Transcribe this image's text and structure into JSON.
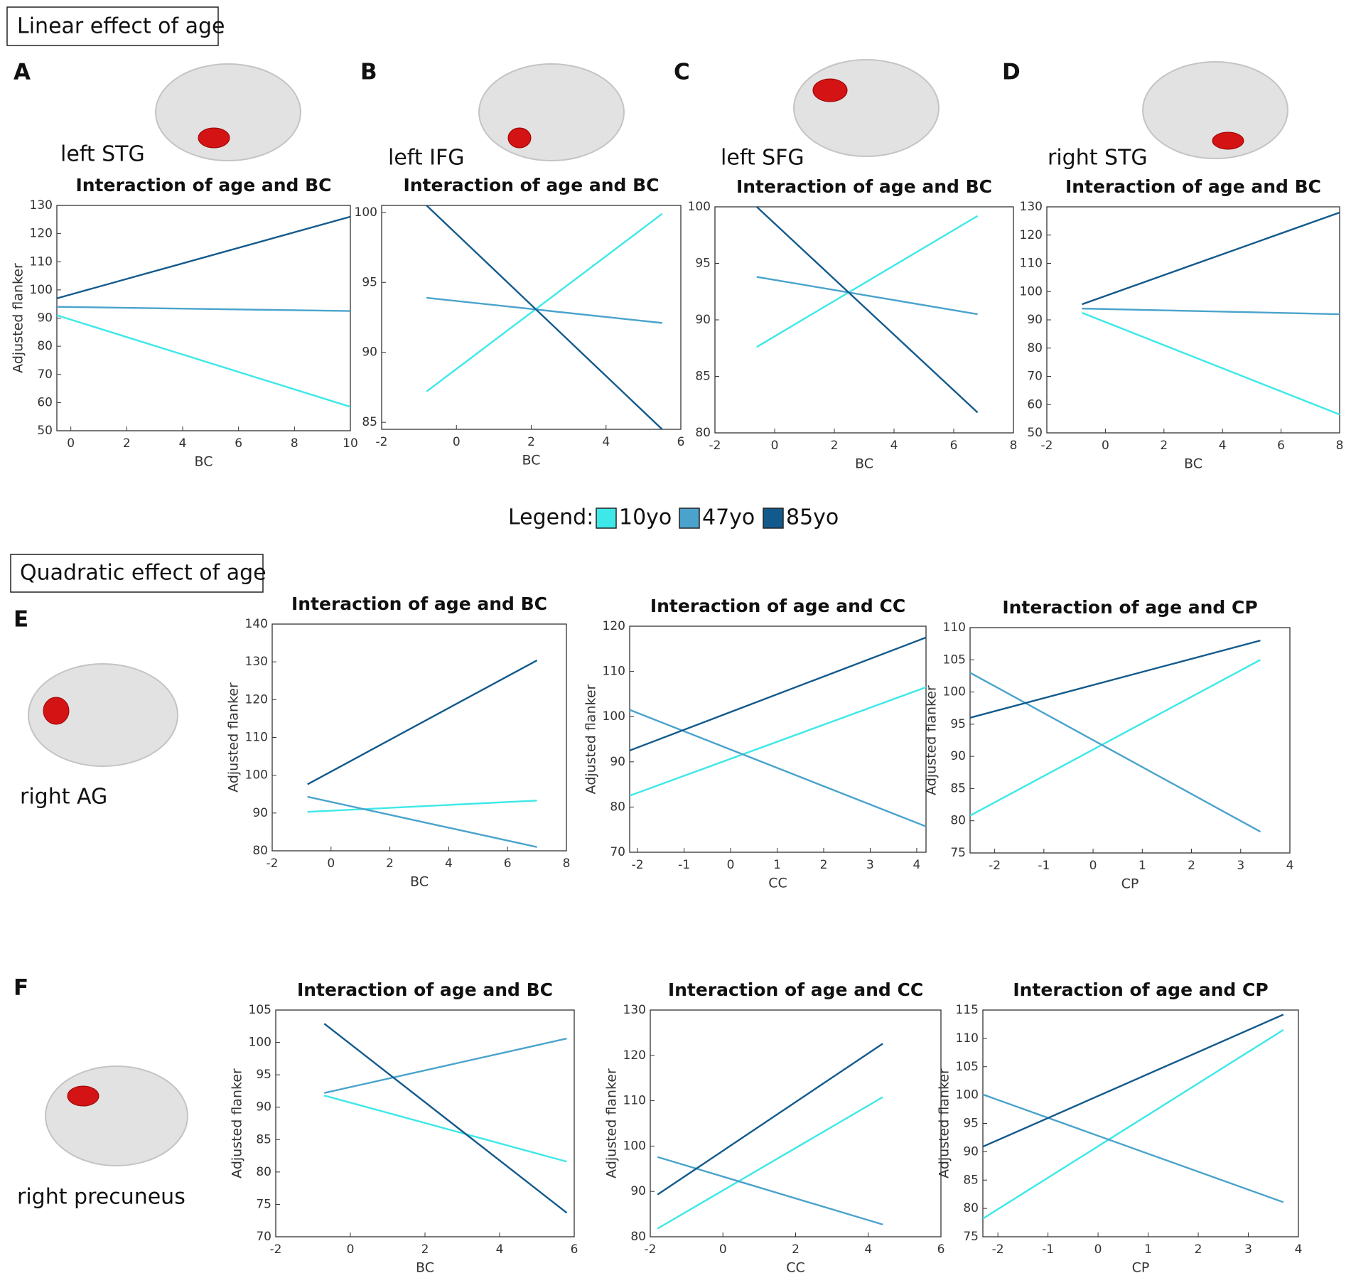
{
  "sections": [
    "Linear effect of age",
    "Quadratic effect of age"
  ],
  "panels": [
    {
      "letter": "A",
      "region": "left STG"
    },
    {
      "letter": "B",
      "region": "left IFG"
    },
    {
      "letter": "C",
      "region": "left SFG"
    },
    {
      "letter": "D",
      "region": "right STG"
    },
    {
      "letter": "E",
      "region": "right AG"
    },
    {
      "letter": "F",
      "region": "right precuneus"
    }
  ],
  "legend": {
    "title": "Legend:",
    "items": [
      {
        "name": "10yo",
        "color": "#3ee8e8"
      },
      {
        "name": "47yo",
        "color": "#4aa3cc"
      },
      {
        "name": "85yo",
        "color": "#135a8c"
      }
    ]
  },
  "chart_data": [
    {
      "type": "line",
      "title": "Interaction of age and BC",
      "xlabel": "BC",
      "ylabel": "Adjusted flanker",
      "xlim": [
        -0.5,
        10
      ],
      "xticks": [
        0,
        2,
        4,
        6,
        8,
        10
      ],
      "ylim": [
        50,
        130
      ],
      "yticks": [
        50,
        60,
        70,
        80,
        90,
        100,
        110,
        120,
        130
      ],
      "series": [
        {
          "color": "#3ee8e8",
          "x": [
            -0.5,
            10
          ],
          "values": [
            91,
            58.5
          ]
        },
        {
          "color": "#4aa3cc",
          "x": [
            -0.5,
            10
          ],
          "values": [
            94,
            92.5
          ]
        },
        {
          "color": "#135a8c",
          "x": [
            -0.5,
            10
          ],
          "values": [
            97,
            126
          ]
        }
      ]
    },
    {
      "type": "line",
      "title": "Interaction of age and BC",
      "xlabel": "BC",
      "xlim": [
        -2,
        6
      ],
      "xticks": [
        -2,
        0,
        2,
        4,
        6
      ],
      "ylim": [
        84.5,
        100.5
      ],
      "yticks": [
        85,
        90,
        95,
        100
      ],
      "series": [
        {
          "color": "#3ee8e8",
          "x": [
            -0.8,
            5.5
          ],
          "values": [
            87.2,
            99.9
          ]
        },
        {
          "color": "#4aa3cc",
          "x": [
            -0.8,
            5.5
          ],
          "values": [
            93.9,
            92.1
          ]
        },
        {
          "color": "#135a8c",
          "x": [
            -0.8,
            5.5
          ],
          "values": [
            100.5,
            84.5
          ]
        }
      ]
    },
    {
      "type": "line",
      "title": "Interaction of age and BC",
      "xlabel": "BC",
      "xlim": [
        -2,
        8
      ],
      "xticks": [
        -2,
        0,
        2,
        4,
        6,
        8
      ],
      "ylim": [
        80,
        100
      ],
      "yticks": [
        80,
        85,
        90,
        95,
        100
      ],
      "series": [
        {
          "color": "#3ee8e8",
          "x": [
            -0.6,
            6.8
          ],
          "values": [
            87.6,
            99.2
          ]
        },
        {
          "color": "#4aa3cc",
          "x": [
            -0.6,
            6.8
          ],
          "values": [
            93.8,
            90.5
          ]
        },
        {
          "color": "#135a8c",
          "x": [
            -0.6,
            6.8
          ],
          "values": [
            100,
            81.8
          ]
        }
      ]
    },
    {
      "type": "line",
      "title": "Interaction of age and BC",
      "xlabel": "BC",
      "xlim": [
        -2,
        8
      ],
      "xticks": [
        -2,
        0,
        2,
        4,
        6,
        8
      ],
      "ylim": [
        50,
        130
      ],
      "yticks": [
        50,
        60,
        70,
        80,
        90,
        100,
        110,
        120,
        130
      ],
      "series": [
        {
          "color": "#3ee8e8",
          "x": [
            -0.8,
            8
          ],
          "values": [
            92.5,
            56.5
          ]
        },
        {
          "color": "#4aa3cc",
          "x": [
            -0.8,
            8
          ],
          "values": [
            94,
            92
          ]
        },
        {
          "color": "#135a8c",
          "x": [
            -0.8,
            8
          ],
          "values": [
            95.5,
            128
          ]
        }
      ]
    },
    {
      "type": "line",
      "title": "Interaction of age and BC",
      "xlabel": "BC",
      "ylabel": "Adjusted flanker",
      "xlim": [
        -2,
        8
      ],
      "xticks": [
        -2,
        0,
        2,
        4,
        6,
        8
      ],
      "ylim": [
        80,
        140
      ],
      "yticks": [
        80,
        90,
        100,
        110,
        120,
        130,
        140
      ],
      "series": [
        {
          "color": "#3ee8e8",
          "x": [
            -0.8,
            7
          ],
          "values": [
            90.3,
            93.3
          ]
        },
        {
          "color": "#4aa3cc",
          "x": [
            -0.8,
            7
          ],
          "values": [
            94.3,
            81
          ]
        },
        {
          "color": "#135a8c",
          "x": [
            -0.8,
            7
          ],
          "values": [
            97.6,
            130.4
          ]
        }
      ]
    },
    {
      "type": "line",
      "title": "Interaction of age and CC",
      "xlabel": "CC",
      "ylabel": "Adjusted flanker",
      "xlim": [
        -2.17,
        4.2
      ],
      "xticks": [
        -2,
        -1,
        0,
        1,
        2,
        3,
        4
      ],
      "ylim": [
        70,
        120
      ],
      "yticks": [
        70,
        80,
        90,
        100,
        110,
        120
      ],
      "series": [
        {
          "color": "#3ee8e8",
          "x": [
            -2.17,
            4.2
          ],
          "values": [
            82.5,
            106.5
          ]
        },
        {
          "color": "#4aa3cc",
          "x": [
            -2.17,
            4.2
          ],
          "values": [
            101.5,
            75.7
          ]
        },
        {
          "color": "#135a8c",
          "x": [
            -2.17,
            4.2
          ],
          "values": [
            92.5,
            117.5
          ]
        }
      ]
    },
    {
      "type": "line",
      "title": "Interaction of age and CP",
      "xlabel": "CP",
      "ylabel": "Adjusted flanker",
      "xlim": [
        -2.5,
        4
      ],
      "xticks": [
        -2,
        -1,
        0,
        1,
        2,
        3,
        4
      ],
      "ylim": [
        75,
        110
      ],
      "yticks": [
        75,
        80,
        85,
        90,
        95,
        100,
        105,
        110
      ],
      "series": [
        {
          "color": "#3ee8e8",
          "x": [
            -2.5,
            3.4
          ],
          "values": [
            80.8,
            105
          ]
        },
        {
          "color": "#4aa3cc",
          "x": [
            -2.5,
            3.4
          ],
          "values": [
            103,
            78.3
          ]
        },
        {
          "color": "#135a8c",
          "x": [
            -2.5,
            3.4
          ],
          "values": [
            96,
            108
          ]
        }
      ]
    },
    {
      "type": "line",
      "title": "Interaction of age and BC",
      "xlabel": "BC",
      "ylabel": "Adjusted flanker",
      "xlim": [
        -2,
        6
      ],
      "xticks": [
        -2,
        0,
        2,
        4,
        6
      ],
      "ylim": [
        70,
        105
      ],
      "yticks": [
        70,
        75,
        80,
        85,
        90,
        95,
        100,
        105
      ],
      "series": [
        {
          "color": "#3ee8e8",
          "x": [
            -0.7,
            5.8
          ],
          "values": [
            91.8,
            81.6
          ]
        },
        {
          "color": "#4aa3cc",
          "x": [
            -0.7,
            5.8
          ],
          "values": [
            92.2,
            100.6
          ]
        },
        {
          "color": "#135a8c",
          "x": [
            -0.7,
            5.8
          ],
          "values": [
            102.9,
            73.7
          ]
        }
      ]
    },
    {
      "type": "line",
      "title": "Interaction of age and CC",
      "xlabel": "CC",
      "ylabel": "Adjusted flanker",
      "xlim": [
        -2,
        6
      ],
      "xticks": [
        -2,
        0,
        2,
        4,
        6
      ],
      "ylim": [
        80,
        130
      ],
      "yticks": [
        80,
        90,
        100,
        110,
        120,
        130
      ],
      "series": [
        {
          "color": "#3ee8e8",
          "x": [
            -1.8,
            4.4
          ],
          "values": [
            81.8,
            110.8
          ]
        },
        {
          "color": "#4aa3cc",
          "x": [
            -1.8,
            4.4
          ],
          "values": [
            97.6,
            82.7
          ]
        },
        {
          "color": "#135a8c",
          "x": [
            -1.8,
            4.4
          ],
          "values": [
            89.3,
            122.6
          ]
        }
      ]
    },
    {
      "type": "line",
      "title": "Interaction of age and CP",
      "xlabel": "CP",
      "ylabel": "Adjusted flanker",
      "xlim": [
        -2.3,
        4
      ],
      "xticks": [
        -2,
        -1,
        0,
        1,
        2,
        3,
        4
      ],
      "ylim": [
        75,
        115
      ],
      "yticks": [
        75,
        80,
        85,
        90,
        95,
        100,
        105,
        110,
        115
      ],
      "series": [
        {
          "color": "#3ee8e8",
          "x": [
            -2.3,
            3.7
          ],
          "values": [
            78.2,
            111.5
          ]
        },
        {
          "color": "#4aa3cc",
          "x": [
            -2.3,
            3.7
          ],
          "values": [
            100.1,
            81.1
          ]
        },
        {
          "color": "#135a8c",
          "x": [
            -2.3,
            3.7
          ],
          "values": [
            90.9,
            114.2
          ]
        }
      ]
    }
  ]
}
